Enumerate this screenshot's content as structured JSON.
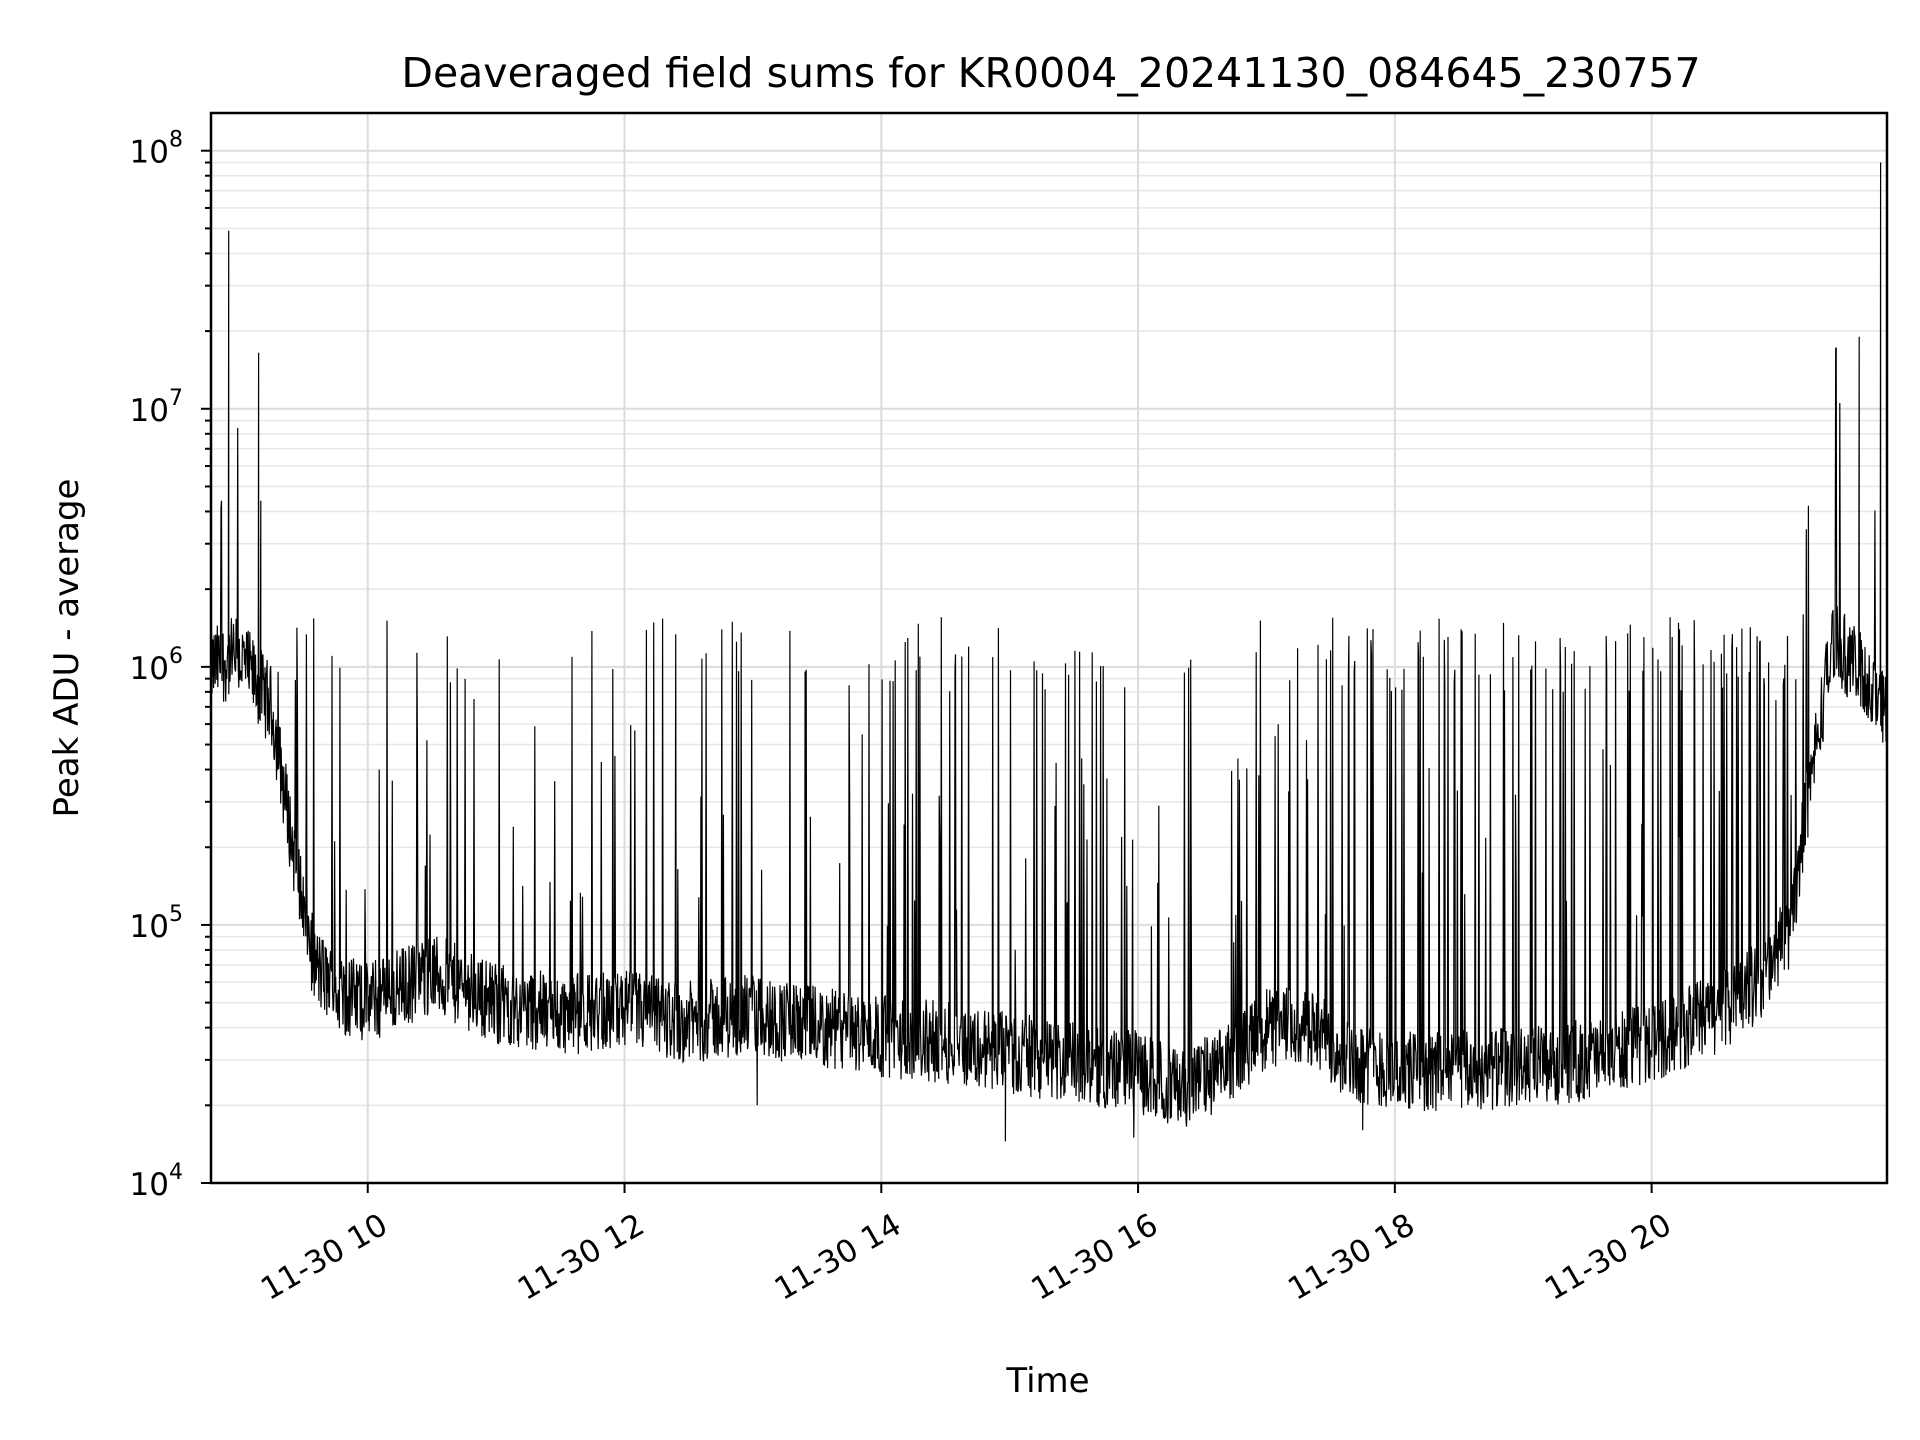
{
  "chart_data": {
    "type": "line",
    "title": "Deaveraged field sums for KR0004_20241130_084645_230757",
    "xlabel": "Time",
    "ylabel": "Peak ADU - average",
    "yscale": "log",
    "ylim": [
      10000,
      140000000
    ],
    "xlim": [
      "2024-11-30 08:46:45",
      "2024-11-30 21:50:00"
    ],
    "x_ticks": [
      {
        "value": "2024-11-30 10:00",
        "label": "11-30 10"
      },
      {
        "value": "2024-11-30 12:00",
        "label": "11-30 12"
      },
      {
        "value": "2024-11-30 14:00",
        "label": "11-30 14"
      },
      {
        "value": "2024-11-30 16:00",
        "label": "11-30 16"
      },
      {
        "value": "2024-11-30 18:00",
        "label": "11-30 18"
      },
      {
        "value": "2024-11-30 20:00",
        "label": "11-30 20"
      }
    ],
    "y_ticks": [
      {
        "value": 10000,
        "base": "10",
        "exp": "4"
      },
      {
        "value": 100000,
        "base": "10",
        "exp": "5"
      },
      {
        "value": 1000000,
        "base": "10",
        "exp": "6"
      },
      {
        "value": 10000000,
        "base": "10",
        "exp": "7"
      },
      {
        "value": 100000000,
        "base": "10",
        "exp": "8"
      }
    ],
    "grid": true,
    "line_color": "#000000",
    "baseline": {
      "times": [
        "2024-11-30 08:47",
        "2024-11-30 09:00",
        "2024-11-30 09:15",
        "2024-11-30 09:25",
        "2024-11-30 09:35",
        "2024-11-30 09:45",
        "2024-11-30 10:00",
        "2024-11-30 10:30",
        "2024-11-30 11:00",
        "2024-11-30 11:30",
        "2024-11-30 12:00",
        "2024-11-30 12:30",
        "2024-11-30 13:00",
        "2024-11-30 13:30",
        "2024-11-30 14:00",
        "2024-11-30 14:30",
        "2024-11-30 15:00",
        "2024-11-30 15:30",
        "2024-11-30 16:00",
        "2024-11-30 16:20",
        "2024-11-30 16:40",
        "2024-11-30 17:00",
        "2024-11-30 17:20",
        "2024-11-30 17:40",
        "2024-11-30 18:00",
        "2024-11-30 18:30",
        "2024-11-30 19:00",
        "2024-11-30 19:30",
        "2024-11-30 20:00",
        "2024-11-30 20:30",
        "2024-11-30 20:50",
        "2024-11-30 21:05",
        "2024-11-30 21:15",
        "2024-11-30 21:25",
        "2024-11-30 21:35",
        "2024-11-30 21:50"
      ],
      "values": [
        1000000,
        1100000,
        700000,
        200000,
        70000,
        55000,
        50000,
        65000,
        50000,
        45000,
        47000,
        42000,
        45000,
        40000,
        37000,
        35000,
        32000,
        29000,
        27000,
        23000,
        28000,
        40000,
        40000,
        30000,
        27000,
        27000,
        28000,
        30000,
        35000,
        45000,
        60000,
        100000,
        400000,
        1300000,
        1000000,
        700000
      ]
    },
    "spikes": [
      {
        "t": "2024-11-30 08:55",
        "v": 49000000
      },
      {
        "t": "2024-11-30 09:09",
        "v": 16500000
      },
      {
        "t": "2024-11-30 09:10",
        "v": 4400000
      },
      {
        "t": "2024-11-30 21:37",
        "v": 19000000
      },
      {
        "t": "2024-11-30 21:47",
        "v": 90000000
      }
    ],
    "dips": [
      {
        "t": "2024-11-30 14:58",
        "v": 14500
      },
      {
        "t": "2024-11-30 15:58",
        "v": 15000
      },
      {
        "t": "2024-11-30 17:45",
        "v": 16000
      },
      {
        "t": "2024-11-30 13:02",
        "v": 20000
      }
    ]
  }
}
